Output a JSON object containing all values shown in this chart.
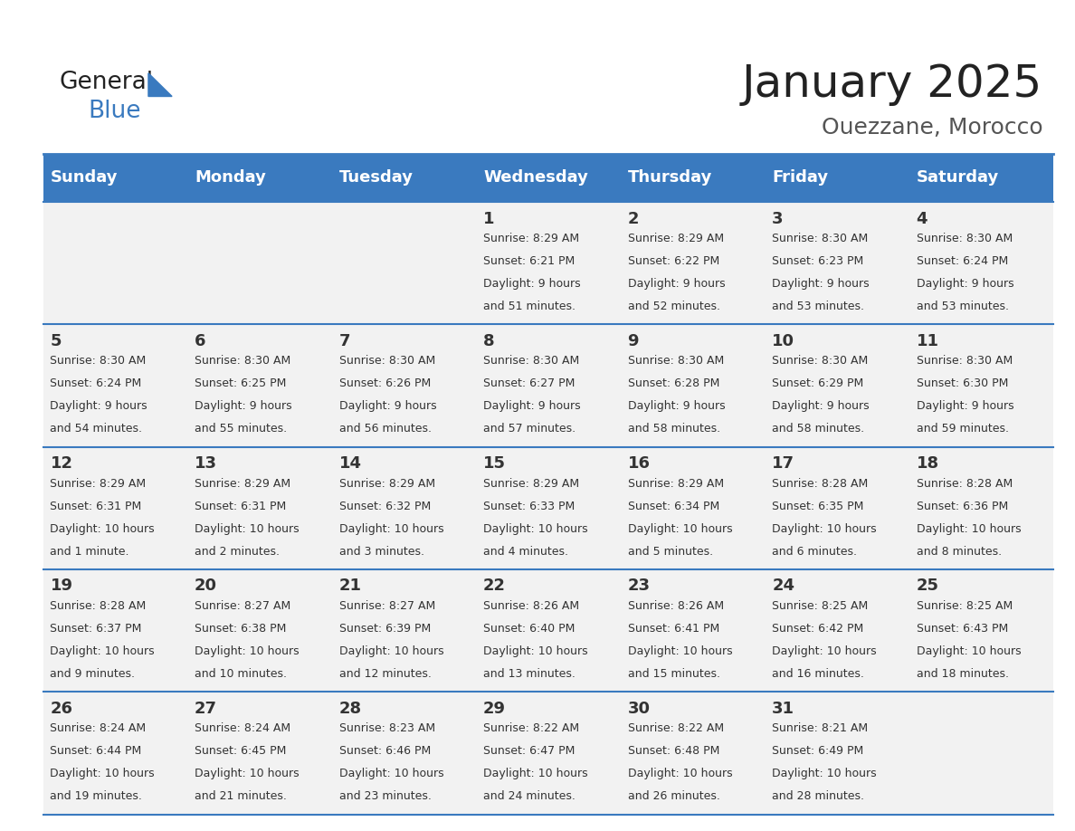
{
  "title": "January 2025",
  "subtitle": "Ouezzane, Morocco",
  "header_bg": "#3a7abf",
  "header_text": "#ffffff",
  "cell_bg_light": "#f2f2f2",
  "cell_bg_white": "#ffffff",
  "row_line_color": "#3a7abf",
  "days_of_week": [
    "Sunday",
    "Monday",
    "Tuesday",
    "Wednesday",
    "Thursday",
    "Friday",
    "Saturday"
  ],
  "weeks": [
    [
      {
        "day": "",
        "sunrise": "",
        "sunset": "",
        "daylight": ""
      },
      {
        "day": "",
        "sunrise": "",
        "sunset": "",
        "daylight": ""
      },
      {
        "day": "",
        "sunrise": "",
        "sunset": "",
        "daylight": ""
      },
      {
        "day": "1",
        "sunrise": "8:29 AM",
        "sunset": "6:21 PM",
        "daylight": "9 hours and 51 minutes."
      },
      {
        "day": "2",
        "sunrise": "8:29 AM",
        "sunset": "6:22 PM",
        "daylight": "9 hours and 52 minutes."
      },
      {
        "day": "3",
        "sunrise": "8:30 AM",
        "sunset": "6:23 PM",
        "daylight": "9 hours and 53 minutes."
      },
      {
        "day": "4",
        "sunrise": "8:30 AM",
        "sunset": "6:24 PM",
        "daylight": "9 hours and 53 minutes."
      }
    ],
    [
      {
        "day": "5",
        "sunrise": "8:30 AM",
        "sunset": "6:24 PM",
        "daylight": "9 hours and 54 minutes."
      },
      {
        "day": "6",
        "sunrise": "8:30 AM",
        "sunset": "6:25 PM",
        "daylight": "9 hours and 55 minutes."
      },
      {
        "day": "7",
        "sunrise": "8:30 AM",
        "sunset": "6:26 PM",
        "daylight": "9 hours and 56 minutes."
      },
      {
        "day": "8",
        "sunrise": "8:30 AM",
        "sunset": "6:27 PM",
        "daylight": "9 hours and 57 minutes."
      },
      {
        "day": "9",
        "sunrise": "8:30 AM",
        "sunset": "6:28 PM",
        "daylight": "9 hours and 58 minutes."
      },
      {
        "day": "10",
        "sunrise": "8:30 AM",
        "sunset": "6:29 PM",
        "daylight": "9 hours and 58 minutes."
      },
      {
        "day": "11",
        "sunrise": "8:30 AM",
        "sunset": "6:30 PM",
        "daylight": "9 hours and 59 minutes."
      }
    ],
    [
      {
        "day": "12",
        "sunrise": "8:29 AM",
        "sunset": "6:31 PM",
        "daylight": "10 hours and 1 minute."
      },
      {
        "day": "13",
        "sunrise": "8:29 AM",
        "sunset": "6:31 PM",
        "daylight": "10 hours and 2 minutes."
      },
      {
        "day": "14",
        "sunrise": "8:29 AM",
        "sunset": "6:32 PM",
        "daylight": "10 hours and 3 minutes."
      },
      {
        "day": "15",
        "sunrise": "8:29 AM",
        "sunset": "6:33 PM",
        "daylight": "10 hours and 4 minutes."
      },
      {
        "day": "16",
        "sunrise": "8:29 AM",
        "sunset": "6:34 PM",
        "daylight": "10 hours and 5 minutes."
      },
      {
        "day": "17",
        "sunrise": "8:28 AM",
        "sunset": "6:35 PM",
        "daylight": "10 hours and 6 minutes."
      },
      {
        "day": "18",
        "sunrise": "8:28 AM",
        "sunset": "6:36 PM",
        "daylight": "10 hours and 8 minutes."
      }
    ],
    [
      {
        "day": "19",
        "sunrise": "8:28 AM",
        "sunset": "6:37 PM",
        "daylight": "10 hours and 9 minutes."
      },
      {
        "day": "20",
        "sunrise": "8:27 AM",
        "sunset": "6:38 PM",
        "daylight": "10 hours and 10 minutes."
      },
      {
        "day": "21",
        "sunrise": "8:27 AM",
        "sunset": "6:39 PM",
        "daylight": "10 hours and 12 minutes."
      },
      {
        "day": "22",
        "sunrise": "8:26 AM",
        "sunset": "6:40 PM",
        "daylight": "10 hours and 13 minutes."
      },
      {
        "day": "23",
        "sunrise": "8:26 AM",
        "sunset": "6:41 PM",
        "daylight": "10 hours and 15 minutes."
      },
      {
        "day": "24",
        "sunrise": "8:25 AM",
        "sunset": "6:42 PM",
        "daylight": "10 hours and 16 minutes."
      },
      {
        "day": "25",
        "sunrise": "8:25 AM",
        "sunset": "6:43 PM",
        "daylight": "10 hours and 18 minutes."
      }
    ],
    [
      {
        "day": "26",
        "sunrise": "8:24 AM",
        "sunset": "6:44 PM",
        "daylight": "10 hours and 19 minutes."
      },
      {
        "day": "27",
        "sunrise": "8:24 AM",
        "sunset": "6:45 PM",
        "daylight": "10 hours and 21 minutes."
      },
      {
        "day": "28",
        "sunrise": "8:23 AM",
        "sunset": "6:46 PM",
        "daylight": "10 hours and 23 minutes."
      },
      {
        "day": "29",
        "sunrise": "8:22 AM",
        "sunset": "6:47 PM",
        "daylight": "10 hours and 24 minutes."
      },
      {
        "day": "30",
        "sunrise": "8:22 AM",
        "sunset": "6:48 PM",
        "daylight": "10 hours and 26 minutes."
      },
      {
        "day": "31",
        "sunrise": "8:21 AM",
        "sunset": "6:49 PM",
        "daylight": "10 hours and 28 minutes."
      },
      {
        "day": "",
        "sunrise": "",
        "sunset": "",
        "daylight": ""
      }
    ]
  ],
  "logo_text_general": "General",
  "logo_text_blue": "Blue",
  "title_fontsize": 36,
  "subtitle_fontsize": 18,
  "header_fontsize": 13,
  "day_num_fontsize": 13,
  "cell_text_fontsize": 9
}
